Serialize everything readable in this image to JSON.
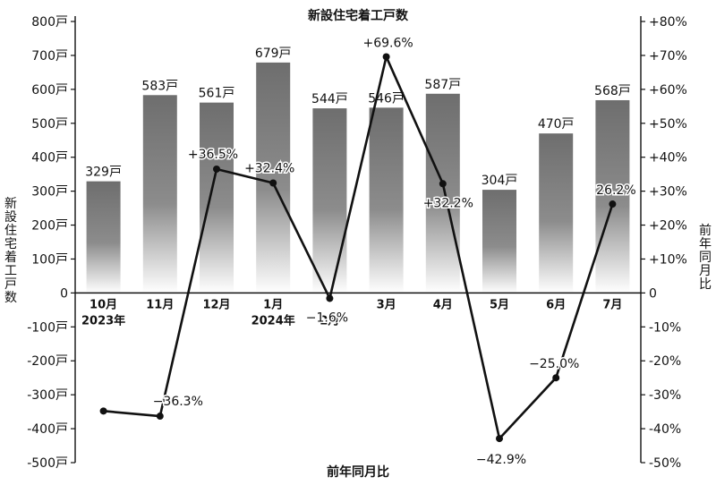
{
  "chart_data": {
    "type": "bar",
    "title": "新設住宅着工戸数",
    "xlabel": "前年同月比",
    "ylabel_left": "新設住宅着工戸数",
    "ylabel_right": "前年同月比",
    "categories": [
      "10月",
      "11月",
      "12月",
      "1月",
      "2月",
      "3月",
      "4月",
      "5月",
      "6月",
      "7月"
    ],
    "year_labels": [
      "2023年",
      "",
      "",
      "2024年",
      "",
      "",
      "",
      "",
      "",
      ""
    ],
    "ylim_left": [
      -500,
      800
    ],
    "ylim_right": [
      -50,
      80
    ],
    "left_ticks": [
      "800戸",
      "700戸",
      "600戸",
      "500戸",
      "400戸",
      "300戸",
      "200戸",
      "100戸",
      "0",
      "-100戸",
      "-200戸",
      "-300戸",
      "-400戸",
      "-500戸"
    ],
    "right_ticks": [
      "+80%",
      "+70%",
      "+60%",
      "+50%",
      "+40%",
      "+30%",
      "+20%",
      "+10%",
      "0",
      "-10%",
      "-20%",
      "-30%",
      "-40%",
      "-50%"
    ],
    "series": [
      {
        "name": "新設住宅着工戸数",
        "type": "bar",
        "values": [
          329,
          583,
          561,
          679,
          544,
          546,
          587,
          304,
          470,
          568
        ],
        "labels": [
          "329戸",
          "583戸",
          "561戸",
          "679戸",
          "544戸",
          "546戸",
          "587戸",
          "304戸",
          "470戸",
          "568戸"
        ]
      },
      {
        "name": "前年同月比",
        "type": "line",
        "values": [
          -34.8,
          -36.3,
          36.5,
          32.4,
          -1.6,
          69.6,
          32.2,
          -42.9,
          -25.0,
          26.2
        ],
        "labels": [
          "",
          "−36.3%",
          "+36.5%",
          "+32.4%",
          "−1.6%",
          "+69.6%",
          "+32.2%",
          "−42.9%",
          "−25.0%",
          "26.2%"
        ]
      }
    ],
    "colors": {
      "bar_top": "#6e6e6e",
      "bar_bottom": "#ffffff",
      "line": "#111111"
    }
  }
}
